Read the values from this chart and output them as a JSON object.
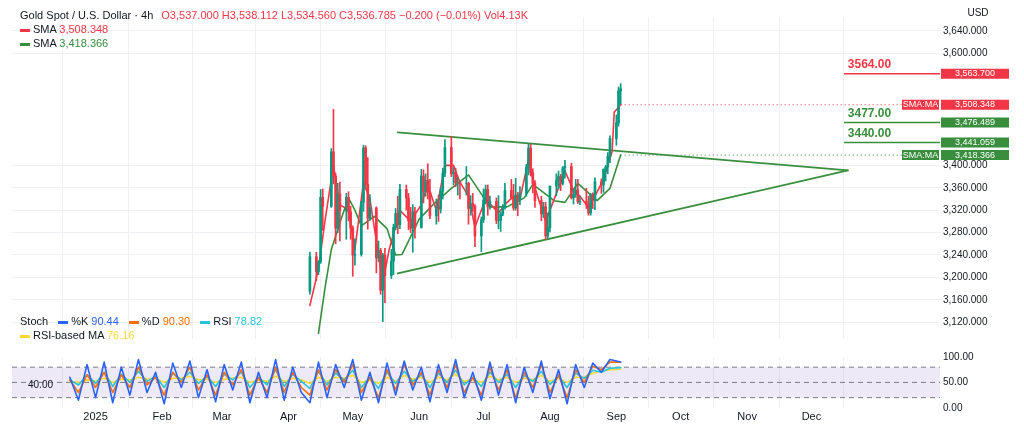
{
  "chart_data": [
    {
      "type": "candlestick",
      "title": "Gold Spot / U.S. Dollar · 4h",
      "subtitle": "O3,537.000 H3,538.112 L3,534.560 C3,536.785 −0.200 (−0.01%) Vol4.13K",
      "ylabel": "USD",
      "x": [
        "2025-04-11",
        "2025-04-14",
        "2025-04-15",
        "2025-04-16",
        "2025-04-17",
        "2025-04-21",
        "2025-04-22",
        "2025-04-23",
        "2025-04-24",
        "2025-04-25",
        "2025-04-28",
        "2025-04-29",
        "2025-04-30",
        "2025-05-01",
        "2025-05-02",
        "2025-05-05",
        "2025-05-06",
        "2025-05-07",
        "2025-05-08",
        "2025-05-09",
        "2025-05-12",
        "2025-05-13",
        "2025-05-14",
        "2025-05-15",
        "2025-05-16",
        "2025-05-19",
        "2025-05-20",
        "2025-05-21",
        "2025-05-22",
        "2025-05-23",
        "2025-05-26",
        "2025-05-27",
        "2025-05-28",
        "2025-05-29",
        "2025-05-30",
        "2025-06-02",
        "2025-06-03",
        "2025-06-04",
        "2025-06-05",
        "2025-06-06",
        "2025-06-09",
        "2025-06-10",
        "2025-06-11",
        "2025-06-12",
        "2025-06-13",
        "2025-06-16",
        "2025-06-17",
        "2025-06-18",
        "2025-06-19",
        "2025-06-20",
        "2025-06-23",
        "2025-06-24",
        "2025-06-25",
        "2025-06-26",
        "2025-06-27",
        "2025-06-30",
        "2025-07-01",
        "2025-07-02",
        "2025-07-03",
        "2025-07-04",
        "2025-07-07",
        "2025-07-08",
        "2025-07-09",
        "2025-07-10",
        "2025-07-11",
        "2025-07-14",
        "2025-07-15",
        "2025-07-16",
        "2025-07-17",
        "2025-07-18",
        "2025-07-21",
        "2025-07-22",
        "2025-07-23",
        "2025-07-24",
        "2025-07-25",
        "2025-07-28",
        "2025-07-29",
        "2025-07-30",
        "2025-07-31",
        "2025-08-01",
        "2025-08-04",
        "2025-08-05",
        "2025-08-06",
        "2025-08-07",
        "2025-08-08",
        "2025-08-11",
        "2025-08-12",
        "2025-08-13",
        "2025-08-14",
        "2025-08-15",
        "2025-08-18",
        "2025-08-19",
        "2025-08-20",
        "2025-08-21",
        "2025-08-22",
        "2025-08-25",
        "2025-08-26",
        "2025-08-27",
        "2025-08-28",
        "2025-08-29",
        "2025-09-01",
        "2025-09-02",
        "2025-09-03"
      ],
      "ohlc": [
        [
          3175,
          3245,
          3170,
          3237
        ],
        [
          3237,
          3245,
          3194,
          3210
        ],
        [
          3210,
          3230,
          3205,
          3228
        ],
        [
          3228,
          3357,
          3225,
          3343
        ],
        [
          3343,
          3358,
          3284,
          3327
        ],
        [
          3327,
          3430,
          3325,
          3424
        ],
        [
          3424,
          3500,
          3367,
          3381
        ],
        [
          3381,
          3386,
          3260,
          3288
        ],
        [
          3288,
          3368,
          3280,
          3349
        ],
        [
          3349,
          3370,
          3265,
          3319
        ],
        [
          3319,
          3350,
          3268,
          3343
        ],
        [
          3343,
          3353,
          3301,
          3317
        ],
        [
          3317,
          3327,
          3268,
          3288
        ],
        [
          3288,
          3292,
          3202,
          3240
        ],
        [
          3240,
          3269,
          3222,
          3241
        ],
        [
          3241,
          3336,
          3238,
          3334
        ],
        [
          3334,
          3436,
          3318,
          3431
        ],
        [
          3431,
          3435,
          3357,
          3366
        ],
        [
          3366,
          3414,
          3286,
          3306
        ],
        [
          3306,
          3348,
          3302,
          3324
        ],
        [
          3324,
          3326,
          3208,
          3235
        ],
        [
          3235,
          3265,
          3228,
          3248
        ],
        [
          3248,
          3252,
          3170,
          3177
        ],
        [
          3177,
          3243,
          3121,
          3240
        ],
        [
          3240,
          3252,
          3155,
          3203
        ],
        [
          3203,
          3250,
          3198,
          3229
        ],
        [
          3229,
          3295,
          3205,
          3289
        ],
        [
          3289,
          3323,
          3285,
          3314
        ],
        [
          3314,
          3345,
          3278,
          3294
        ],
        [
          3294,
          3366,
          3287,
          3357
        ],
        [
          3357,
          3365,
          3320,
          3342
        ],
        [
          3342,
          3350,
          3285,
          3301
        ],
        [
          3301,
          3325,
          3280,
          3288
        ],
        [
          3288,
          3330,
          3245,
          3317
        ],
        [
          3317,
          3325,
          3270,
          3289
        ],
        [
          3289,
          3393,
          3288,
          3381
        ],
        [
          3381,
          3392,
          3333,
          3353
        ],
        [
          3353,
          3385,
          3345,
          3373
        ],
        [
          3373,
          3403,
          3340,
          3352
        ],
        [
          3352,
          3375,
          3305,
          3310
        ],
        [
          3310,
          3340,
          3295,
          3326
        ],
        [
          3326,
          3347,
          3300,
          3322
        ],
        [
          3322,
          3360,
          3315,
          3354
        ],
        [
          3354,
          3395,
          3340,
          3386
        ],
        [
          3386,
          3446,
          3380,
          3432
        ],
        [
          3432,
          3452,
          3380,
          3385
        ],
        [
          3385,
          3396,
          3365,
          3388
        ],
        [
          3388,
          3395,
          3362,
          3369
        ],
        [
          3369,
          3378,
          3347,
          3369
        ],
        [
          3369,
          3372,
          3340,
          3368
        ],
        [
          3368,
          3398,
          3347,
          3368
        ],
        [
          3368,
          3370,
          3295,
          3323
        ],
        [
          3323,
          3346,
          3311,
          3332
        ],
        [
          3332,
          3350,
          3318,
          3327
        ],
        [
          3327,
          3330,
          3255,
          3274
        ],
        [
          3274,
          3308,
          3246,
          3303
        ],
        [
          3303,
          3358,
          3298,
          3338
        ],
        [
          3338,
          3365,
          3331,
          3357
        ],
        [
          3357,
          3365,
          3311,
          3326
        ],
        [
          3326,
          3345,
          3322,
          3336
        ],
        [
          3336,
          3342,
          3296,
          3302
        ],
        [
          3302,
          3346,
          3287,
          3302
        ],
        [
          3302,
          3317,
          3282,
          3313
        ],
        [
          3313,
          3330,
          3310,
          3325
        ],
        [
          3325,
          3368,
          3322,
          3355
        ],
        [
          3355,
          3375,
          3340,
          3343
        ],
        [
          3343,
          3366,
          3320,
          3324
        ],
        [
          3324,
          3377,
          3320,
          3347
        ],
        [
          3347,
          3352,
          3310,
          3339
        ],
        [
          3339,
          3362,
          3330,
          3350
        ],
        [
          3350,
          3402,
          3345,
          3397
        ],
        [
          3397,
          3439,
          3383,
          3431
        ],
        [
          3431,
          3438,
          3381,
          3387
        ],
        [
          3387,
          3394,
          3351,
          3368
        ],
        [
          3368,
          3373,
          3325,
          3337
        ],
        [
          3337,
          3345,
          3301,
          3314
        ],
        [
          3314,
          3334,
          3307,
          3326
        ],
        [
          3326,
          3334,
          3268,
          3274
        ],
        [
          3274,
          3315,
          3270,
          3289
        ],
        [
          3289,
          3363,
          3281,
          3363
        ],
        [
          3363,
          3385,
          3346,
          3373
        ],
        [
          3373,
          3390,
          3358,
          3380
        ],
        [
          3380,
          3384,
          3355,
          3368
        ],
        [
          3368,
          3398,
          3365,
          3396
        ],
        [
          3396,
          3409,
          3377,
          3398
        ],
        [
          3398,
          3404,
          3340,
          3342
        ],
        [
          3342,
          3358,
          3331,
          3348
        ],
        [
          3348,
          3375,
          3343,
          3356
        ],
        [
          3356,
          3375,
          3332,
          3335
        ],
        [
          3335,
          3345,
          3330,
          3336
        ],
        [
          3336,
          3359,
          3323,
          3332
        ],
        [
          3332,
          3345,
          3311,
          3315
        ],
        [
          3315,
          3350,
          3311,
          3348
        ],
        [
          3348,
          3351,
          3323,
          3338
        ],
        [
          3338,
          3378,
          3321,
          3371
        ],
        [
          3371,
          3376,
          3350,
          3365
        ],
        [
          3365,
          3394,
          3352,
          3393
        ],
        [
          3393,
          3400,
          3372,
          3397
        ],
        [
          3397,
          3423,
          3385,
          3416
        ],
        [
          3416,
          3453,
          3405,
          3448
        ],
        [
          3448,
          3490,
          3436,
          3476
        ],
        [
          3476,
          3540,
          3470,
          3533
        ],
        [
          3533,
          3546,
          3510,
          3537
        ]
      ],
      "series": [
        {
          "name": "SMA",
          "type": "line",
          "color": "#f23645",
          "x": [
            "2025-04-11",
            "2025-04-15",
            "2025-04-18",
            "2025-04-22",
            "2025-04-25",
            "2025-04-29",
            "2025-05-02",
            "2025-05-06",
            "2025-05-09",
            "2025-05-13",
            "2025-05-15",
            "2025-05-18",
            "2025-05-23",
            "2025-05-28",
            "2025-06-02",
            "2025-06-05",
            "2025-06-09",
            "2025-06-13",
            "2025-06-17",
            "2025-06-20",
            "2025-06-24",
            "2025-06-27",
            "2025-07-02",
            "2025-07-08",
            "2025-07-11",
            "2025-07-15",
            "2025-07-18",
            "2025-07-22",
            "2025-07-25",
            "2025-07-30",
            "2025-08-04",
            "2025-08-08",
            "2025-08-12",
            "2025-08-15",
            "2025-08-19",
            "2025-08-22",
            "2025-08-26",
            "2025-08-30",
            "2025-08-31",
            "2025-09-03"
          ],
          "values": [
            3150,
            3215,
            3300,
            3400,
            3330,
            3320,
            3250,
            3370,
            3340,
            3240,
            3190,
            3250,
            3320,
            3300,
            3330,
            3365,
            3320,
            3400,
            3400,
            3370,
            3345,
            3290,
            3340,
            3315,
            3330,
            3345,
            3340,
            3410,
            3360,
            3300,
            3350,
            3390,
            3355,
            3345,
            3325,
            3345,
            3375,
            3425,
            3495,
            3508.348
          ]
        },
        {
          "name": "SMA",
          "type": "line",
          "color": "#388e3c",
          "x": [
            "2025-04-15",
            "2025-04-18",
            "2025-04-21",
            "2025-04-26",
            "2025-04-29",
            "2025-05-02",
            "2025-05-05",
            "2025-05-11",
            "2025-05-17",
            "2025-05-21",
            "2025-05-24",
            "2025-06-01",
            "2025-06-08",
            "2025-06-16",
            "2025-06-24",
            "2025-07-04",
            "2025-07-12",
            "2025-07-20",
            "2025-07-24",
            "2025-08-03",
            "2025-08-08",
            "2025-08-14",
            "2025-08-23",
            "2025-08-29",
            "2025-09-03"
          ],
          "values": [
            3100,
            3180,
            3250,
            3309,
            3342,
            3320,
            3292,
            3309,
            3287,
            3240,
            3241,
            3304,
            3332,
            3359,
            3383,
            3326,
            3326,
            3342,
            3366,
            3337,
            3334,
            3368,
            3337,
            3359,
            3418.366
          ]
        },
        {
          "type": "line",
          "color": "#388e3c",
          "x": [
            "2025-05-22",
            "2025-12-18"
          ],
          "values": [
            3459,
            3391
          ]
        },
        {
          "type": "line",
          "color": "#388e3c",
          "x": [
            "2025-05-22",
            "2025-12-18"
          ],
          "values": [
            3207,
            3391
          ]
        }
      ],
      "ref_lines": [
        {
          "axis": "y",
          "value": 3563.7,
          "label": "3,563.700",
          "color": "#f23645"
        },
        {
          "axis": "y",
          "value": 3476.489,
          "label": "3,476.489",
          "color": "#388e3c"
        },
        {
          "axis": "y",
          "value": 3441.059,
          "label": "3,441.059",
          "color": "#388e3c"
        }
      ],
      "annotations": [
        "3,508.348",
        "3,418.366",
        {
          "text": "SMA:MA",
          "x": "2025-09-03",
          "y": 3508.348
        },
        {
          "text": "SMA:MA",
          "x": "2025-09-03",
          "y": 3418.366
        },
        {
          "text": "3564.00",
          "x": "2025-12-18",
          "y": 3564
        },
        {
          "text": "3477.00",
          "x": "2025-12-18",
          "y": 3477
        },
        {
          "text": "3440.00",
          "x": "2025-12-18",
          "y": 3440
        }
      ],
      "xlim": [
        "2024-11-23",
        "2026-01-30"
      ],
      "xticks": [
        {
          "value": "2025-01-01",
          "label": null
        },
        {
          "value": "2025-02-01",
          "label": null
        },
        {
          "value": "2025-03-01",
          "label": null
        },
        {
          "value": "2025-04-01",
          "label": null
        },
        {
          "value": "2025-05-01",
          "label": null
        },
        {
          "value": "2025-06-01",
          "label": null
        },
        {
          "value": "2025-07-01",
          "label": null
        },
        {
          "value": "2025-08-01",
          "label": null
        },
        {
          "value": "2025-09-01",
          "label": null
        },
        {
          "value": "2025-10-01",
          "label": null
        },
        {
          "value": "2025-11-01",
          "label": null
        },
        {
          "value": "2025-12-01",
          "label": null
        }
      ],
      "ylim": [
        3090,
        3665
      ],
      "yticks": [
        {
          "value": 3120,
          "label": "3,120.000"
        },
        {
          "value": 3160,
          "label": "3,160.000"
        },
        {
          "value": 3200,
          "label": "3,200.000"
        },
        {
          "value": 3240,
          "label": "3,240.000"
        },
        {
          "value": 3280,
          "label": "3,280.000"
        },
        {
          "value": 3320,
          "label": "3,320.000"
        },
        {
          "value": 3360,
          "label": "3,360.000"
        },
        {
          "value": 3400,
          "label": "3,400.000"
        },
        {
          "value": 3600,
          "label": "3,600.000"
        },
        {
          "value": 3640,
          "label": "3,640.000"
        }
      ],
      "grid": true,
      "tick_labels": "y",
      "legend": "top left",
      "marker": "none"
    },
    {
      "type": "line",
      "title": "Stoch",
      "x": [
        "2024-12-20",
        "2024-12-24",
        "2024-12-28",
        "2025-01-01",
        "2025-01-05",
        "2025-01-09",
        "2025-01-13",
        "2025-01-17",
        "2025-01-21",
        "2025-01-25",
        "2025-01-29",
        "2025-02-02",
        "2025-02-06",
        "2025-02-10",
        "2025-02-14",
        "2025-02-18",
        "2025-02-22",
        "2025-02-26",
        "2025-03-02",
        "2025-03-06",
        "2025-03-10",
        "2025-03-14",
        "2025-03-18",
        "2025-03-22",
        "2025-03-26",
        "2025-03-30",
        "2025-04-03",
        "2025-04-07",
        "2025-04-11",
        "2025-04-15",
        "2025-04-19",
        "2025-04-23",
        "2025-04-27",
        "2025-05-01",
        "2025-05-05",
        "2025-05-09",
        "2025-05-13",
        "2025-05-17",
        "2025-05-21",
        "2025-05-25",
        "2025-05-29",
        "2025-06-02",
        "2025-06-06",
        "2025-06-10",
        "2025-06-14",
        "2025-06-18",
        "2025-06-22",
        "2025-06-26",
        "2025-06-30",
        "2025-07-04",
        "2025-07-08",
        "2025-07-12",
        "2025-07-16",
        "2025-07-20",
        "2025-07-24",
        "2025-07-28",
        "2025-08-01",
        "2025-08-05",
        "2025-08-09",
        "2025-08-13",
        "2025-08-17",
        "2025-08-21",
        "2025-08-25",
        "2025-08-29",
        "2025-09-03"
      ],
      "series": [
        {
          "name": "%K",
          "color": "#2962ff",
          "values": [
            60,
            15,
            85,
            20,
            90,
            10,
            80,
            25,
            95,
            30,
            70,
            8,
            88,
            40,
            92,
            20,
            75,
            12,
            85,
            35,
            90,
            10,
            70,
            20,
            95,
            15,
            80,
            30,
            10,
            90,
            20,
            85,
            40,
            95,
            15,
            70,
            10,
            88,
            25,
            92,
            35,
            80,
            12,
            85,
            30,
            95,
            20,
            70,
            15,
            90,
            25,
            85,
            10,
            80,
            30,
            92,
            18,
            75,
            8,
            85,
            40,
            88,
            70,
            95,
            90
          ]
        },
        {
          "name": "%D",
          "color": "#ff6d00",
          "values": [
            55,
            30,
            65,
            40,
            70,
            30,
            65,
            40,
            80,
            45,
            60,
            25,
            70,
            50,
            80,
            35,
            65,
            25,
            70,
            45,
            75,
            25,
            60,
            30,
            80,
            30,
            70,
            40,
            25,
            75,
            35,
            75,
            50,
            85,
            30,
            60,
            20,
            75,
            35,
            85,
            45,
            70,
            25,
            75,
            40,
            85,
            30,
            60,
            25,
            80,
            35,
            75,
            20,
            70,
            40,
            85,
            30,
            65,
            20,
            75,
            50,
            82,
            75,
            90,
            90
          ]
        },
        {
          "name": "RSI",
          "color": "#26c6da",
          "values": [
            55,
            45,
            65,
            48,
            70,
            42,
            66,
            50,
            72,
            52,
            62,
            40,
            68,
            55,
            70,
            48,
            62,
            42,
            66,
            55,
            70,
            40,
            60,
            45,
            75,
            42,
            66,
            52,
            38,
            72,
            45,
            68,
            55,
            74,
            40,
            60,
            38,
            70,
            48,
            72,
            52,
            65,
            40,
            68,
            50,
            74,
            45,
            60,
            42,
            70,
            50,
            66,
            40,
            64,
            52,
            72,
            46,
            62,
            40,
            68,
            58,
            74,
            70,
            78,
            79
          ]
        },
        {
          "name": "RSI-based MA",
          "color": "#fdd835",
          "values": [
            52,
            50,
            55,
            52,
            58,
            50,
            56,
            55,
            60,
            56,
            58,
            50,
            58,
            58,
            62,
            55,
            56,
            50,
            56,
            58,
            60,
            50,
            55,
            52,
            62,
            52,
            58,
            55,
            48,
            60,
            52,
            60,
            58,
            64,
            50,
            55,
            48,
            60,
            52,
            64,
            56,
            60,
            50,
            60,
            55,
            66,
            52,
            56,
            50,
            62,
            55,
            60,
            50,
            58,
            55,
            64,
            52,
            58,
            50,
            60,
            60,
            68,
            72,
            75,
            76
          ]
        }
      ],
      "annotations": [
        "90.44",
        "90.30",
        "78.82",
        "76.16",
        "40.00"
      ],
      "xlim": [
        "2024-11-23",
        "2026-01-30"
      ],
      "xticks": [
        {
          "value": "2025-01-01",
          "label": "2025"
        },
        {
          "value": "2025-02-01",
          "label": "Feb"
        },
        {
          "value": "2025-03-01",
          "label": "Mar"
        },
        {
          "value": "2025-04-01",
          "label": "Apr"
        },
        {
          "value": "2025-05-01",
          "label": "May"
        },
        {
          "value": "2025-06-01",
          "label": "Jun"
        },
        {
          "value": "2025-07-01",
          "label": "Jul"
        },
        {
          "value": "2025-08-01",
          "label": "Aug"
        },
        {
          "value": "2025-09-01",
          "label": "Sep"
        },
        {
          "value": "2025-10-01",
          "label": "Oct"
        },
        {
          "value": "2025-11-01",
          "label": "Nov"
        },
        {
          "value": "2025-12-01",
          "label": "Dec"
        }
      ],
      "ylim": [
        0,
        100
      ],
      "yticks": [
        {
          "value": 0,
          "label": "0.00"
        },
        {
          "value": 50,
          "label": "50.00"
        },
        {
          "value": 100,
          "label": "100.00"
        }
      ],
      "bands": [
        {
          "axis": "y",
          "from": 20,
          "to": 80,
          "color": "#7e57c2"
        }
      ],
      "ref_lines": [
        {
          "axis": "y",
          "value": 80,
          "color": "#787b86",
          "line_style": "dashed"
        },
        {
          "axis": "y",
          "value": 50,
          "color": "#787b86",
          "line_style": "dashed"
        },
        {
          "axis": "y",
          "value": 20,
          "color": "#787b86",
          "line_style": "dashed"
        }
      ],
      "grid": "x",
      "legend": "top left",
      "marker": "none"
    }
  ]
}
